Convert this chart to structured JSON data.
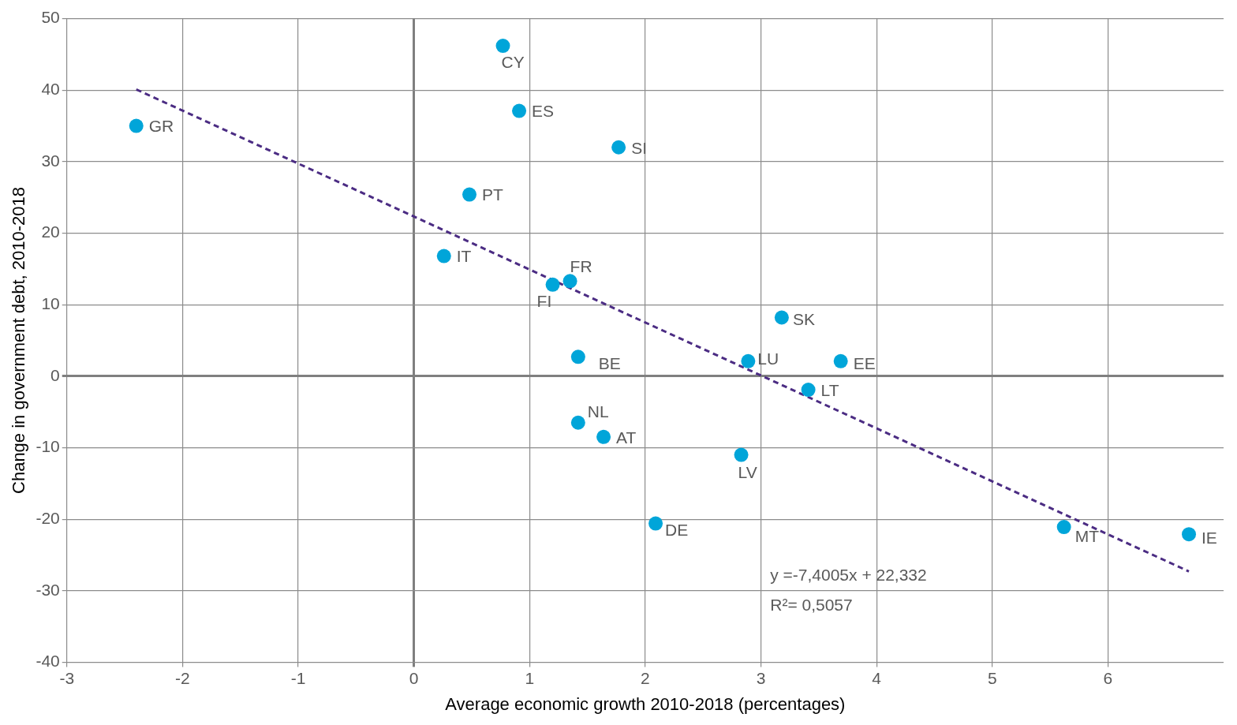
{
  "chart_data": {
    "type": "scatter",
    "xlabel": "Average economic growth 2010-2018 (percentages)",
    "ylabel": "Change in government debt, 2010-2018",
    "xlim": [
      -3,
      7
    ],
    "xticks": [
      -3,
      -2,
      -1,
      0,
      1,
      2,
      3,
      4,
      5,
      6
    ],
    "ylim": [
      -40,
      50
    ],
    "yticks": [
      -40,
      -30,
      -20,
      -10,
      0,
      10,
      20,
      30,
      40,
      50
    ],
    "grid": true,
    "legend": false,
    "marker": "circle",
    "series": [
      {
        "name": "GR",
        "color": "#00a5d9",
        "x": [
          -2.4
        ],
        "values": [
          35.0
        ]
      },
      {
        "name": "CY",
        "color": "#00a5d9",
        "x": [
          0.77
        ],
        "values": [
          46.2
        ]
      },
      {
        "name": "ES",
        "color": "#00a5d9",
        "x": [
          0.91
        ],
        "values": [
          37.1
        ]
      },
      {
        "name": "SI",
        "color": "#00a5d9",
        "x": [
          1.77
        ],
        "values": [
          32.0
        ]
      },
      {
        "name": "PT",
        "color": "#00a5d9",
        "x": [
          0.48
        ],
        "values": [
          25.4
        ]
      },
      {
        "name": "IT",
        "color": "#00a5d9",
        "x": [
          0.26
        ],
        "values": [
          16.8
        ]
      },
      {
        "name": "FI",
        "color": "#00a5d9",
        "x": [
          1.2
        ],
        "values": [
          12.8
        ]
      },
      {
        "name": "FR",
        "color": "#00a5d9",
        "x": [
          1.35
        ],
        "values": [
          13.3
        ]
      },
      {
        "name": "BE",
        "color": "#00a5d9",
        "x": [
          1.42
        ],
        "values": [
          2.7
        ]
      },
      {
        "name": "NL",
        "color": "#00a5d9",
        "x": [
          1.42
        ],
        "values": [
          -6.5
        ]
      },
      {
        "name": "AT",
        "color": "#00a5d9",
        "x": [
          1.64
        ],
        "values": [
          -8.5
        ]
      },
      {
        "name": "DE",
        "color": "#00a5d9",
        "x": [
          2.09
        ],
        "values": [
          -20.6
        ]
      },
      {
        "name": "LV",
        "color": "#00a5d9",
        "x": [
          2.83
        ],
        "values": [
          -11.0
        ]
      },
      {
        "name": "LU",
        "color": "#00a5d9",
        "x": [
          2.89
        ],
        "values": [
          2.1
        ]
      },
      {
        "name": "SK",
        "color": "#00a5d9",
        "x": [
          3.18
        ],
        "values": [
          8.2
        ]
      },
      {
        "name": "EE",
        "color": "#00a5d9",
        "x": [
          3.69
        ],
        "values": [
          2.1
        ]
      },
      {
        "name": "LT",
        "color": "#00a5d9",
        "x": [
          3.41
        ],
        "values": [
          -1.9
        ]
      },
      {
        "name": "MT",
        "color": "#00a5d9",
        "x": [
          5.62
        ],
        "values": [
          -21.1
        ]
      },
      {
        "name": "IE",
        "color": "#00a5d9",
        "x": [
          6.7
        ],
        "values": [
          -22.1
        ]
      },
      {
        "type": "line",
        "color": "#4b2c83",
        "line_style": "dashed",
        "marker": "none",
        "x": [
          -2.4,
          6.7
        ],
        "values": [
          40.1,
          -27.3
        ]
      }
    ],
    "annotations": [
      "y =-7,4005x + 22,332",
      "R²= 0,5057"
    ]
  }
}
